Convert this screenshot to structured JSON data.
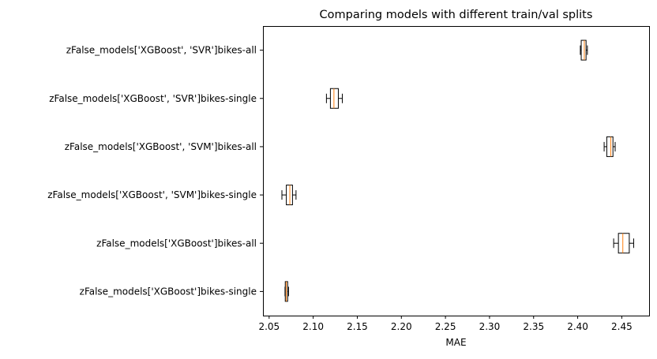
{
  "chart_data": {
    "type": "boxplot",
    "orientation": "horizontal",
    "title": "Comparing models with different train/val splits",
    "xlabel": "MAE",
    "ylabel": "",
    "xlim": [
      2.043,
      2.481
    ],
    "xticks": [
      2.05,
      2.1,
      2.15,
      2.2,
      2.25,
      2.3,
      2.35,
      2.4,
      2.45
    ],
    "xtick_labels": [
      "2.05",
      "2.10",
      "2.15",
      "2.20",
      "2.25",
      "2.30",
      "2.35",
      "2.40",
      "2.45"
    ],
    "grid": false,
    "box_color": "#000000",
    "median_color": "#ff7f0e",
    "categories": [
      "zFalse_models['XGBoost']bikes-single",
      "zFalse_models['XGBoost']bikes-all",
      "zFalse_models['XGBoost', 'SVM']bikes-single",
      "zFalse_models['XGBoost', 'SVM']bikes-all",
      "zFalse_models['XGBoost', 'SVR']bikes-single",
      "zFalse_models['XGBoost', 'SVR']bikes-all"
    ],
    "boxes": [
      {
        "whislo": 2.068,
        "q1": 2.0683,
        "med": 2.0695,
        "q3": 2.071,
        "whishi": 2.072
      },
      {
        "whislo": 2.4408,
        "q1": 2.4462,
        "med": 2.4512,
        "q3": 2.4585,
        "whishi": 2.4635
      },
      {
        "whislo": 2.0645,
        "q1": 2.0695,
        "med": 2.0735,
        "q3": 2.0765,
        "whishi": 2.0805
      },
      {
        "whislo": 2.43,
        "q1": 2.433,
        "med": 2.4375,
        "q3": 2.44,
        "whishi": 2.4425
      },
      {
        "whislo": 2.115,
        "q1": 2.1195,
        "med": 2.1235,
        "q3": 2.1285,
        "whishi": 2.133
      },
      {
        "whislo": 2.403,
        "q1": 2.404,
        "med": 2.4075,
        "q3": 2.4095,
        "whishi": 2.411
      }
    ]
  }
}
